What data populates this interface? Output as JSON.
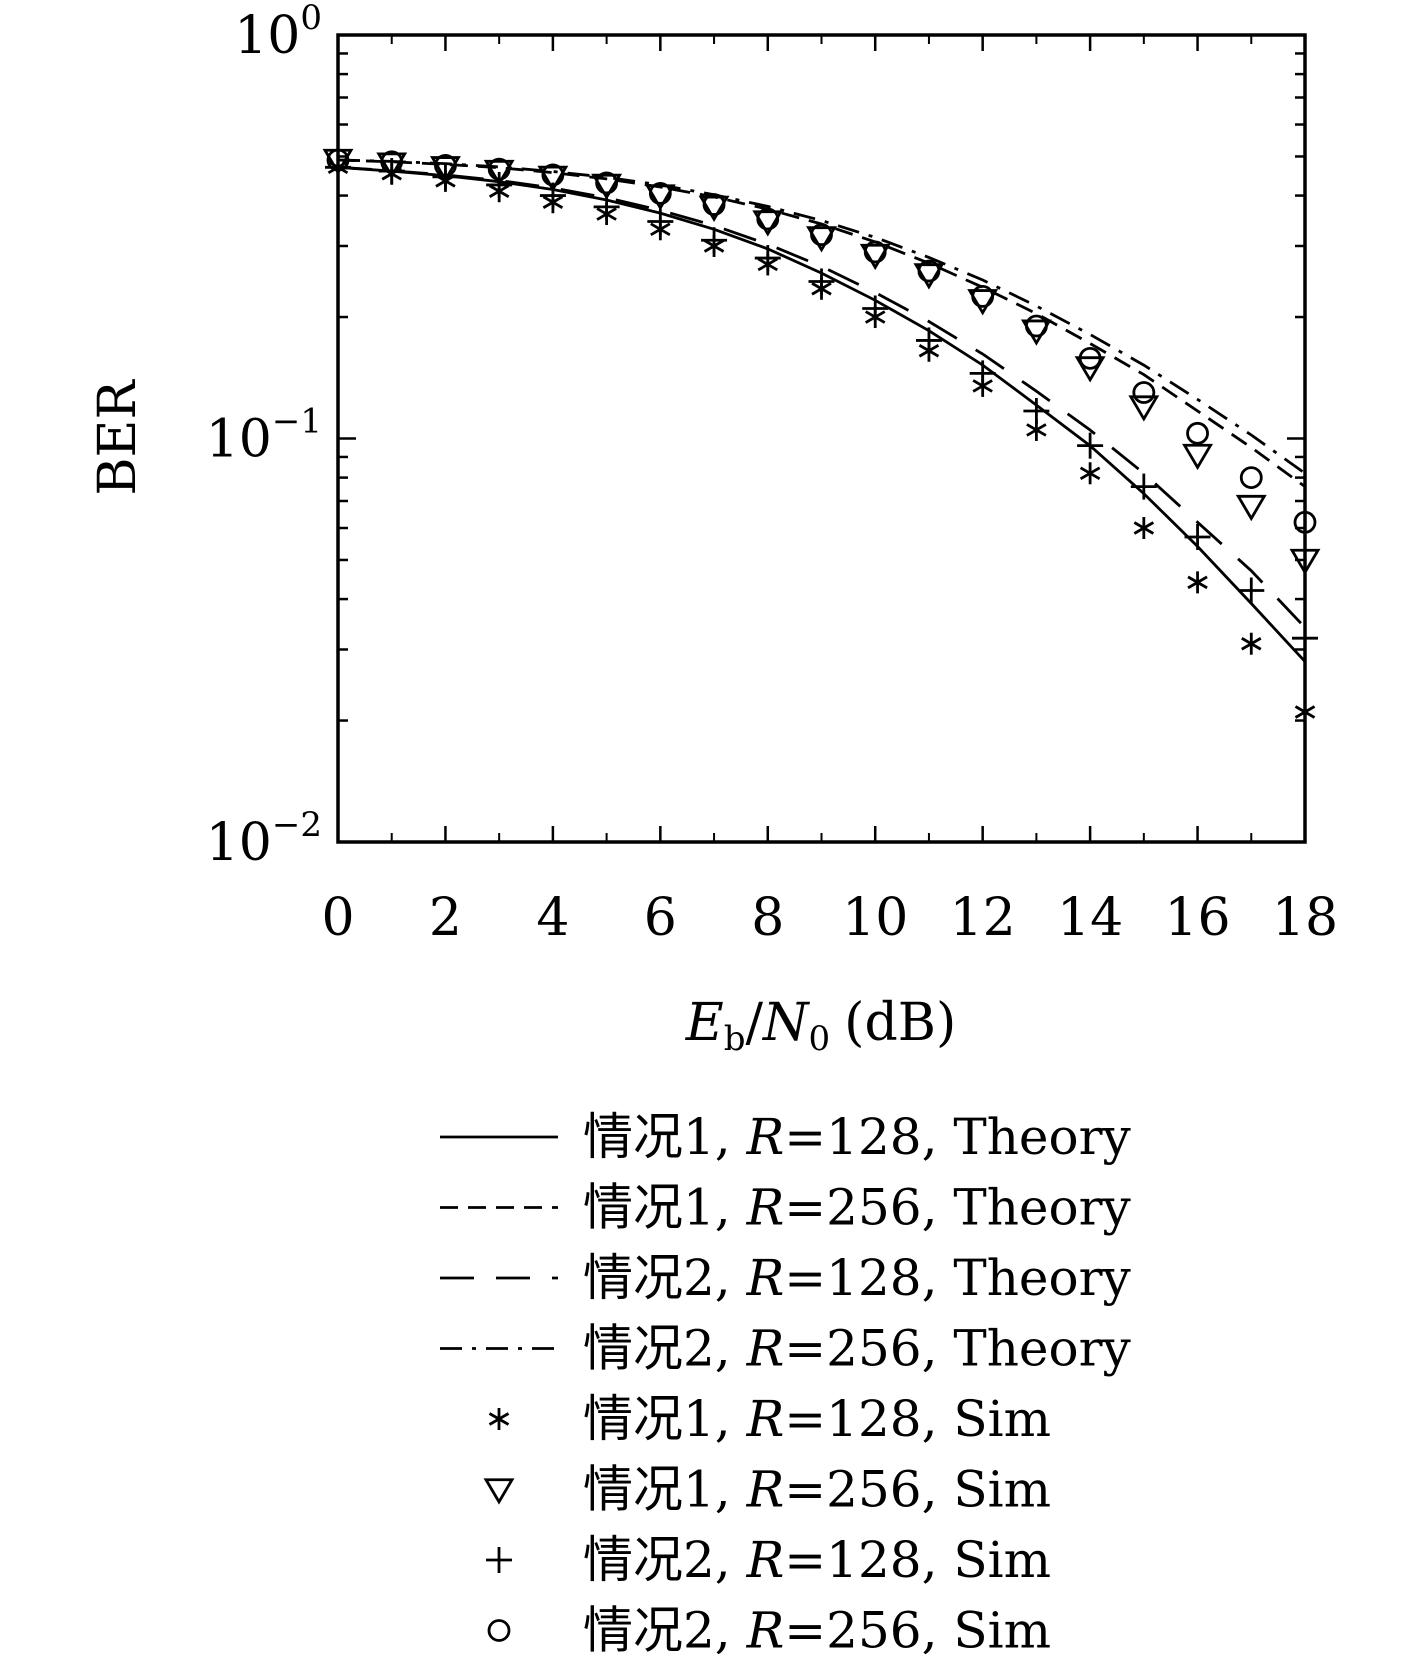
{
  "chart_data": {
    "type": "line",
    "title": "",
    "xlabel": {
      "E": "E",
      "b": "b",
      "slash": "/",
      "N": "N",
      "zero": "0",
      "unit": "(dB)"
    },
    "ylabel": "BER",
    "xlim": [
      0,
      18
    ],
    "ylim": [
      0.01,
      1
    ],
    "yscale": "log",
    "x_ticks": [
      "0",
      "2",
      "4",
      "6",
      "8",
      "10",
      "12",
      "14",
      "16",
      "18"
    ],
    "y_ticks": [
      {
        "base": "10",
        "exp": "0"
      },
      {
        "base": "10",
        "exp": "−1"
      },
      {
        "base": "10",
        "exp": "−2"
      }
    ],
    "grid": false,
    "legend_position": "bottom",
    "series": [
      {
        "name_parts": [
          "情况1, ",
          "R",
          "=128, Theory"
        ],
        "style": "solid",
        "marker": "none",
        "x": [
          0,
          1,
          2,
          3,
          4,
          5,
          6,
          7,
          8,
          9,
          10,
          11,
          12,
          13,
          14,
          15,
          16,
          17,
          18
        ],
        "y": [
          0.47,
          0.46,
          0.448,
          0.433,
          0.414,
          0.39,
          0.362,
          0.33,
          0.295,
          0.257,
          0.22,
          0.185,
          0.152,
          0.121,
          0.096,
          0.073,
          0.054,
          0.039,
          0.028
        ]
      },
      {
        "name_parts": [
          "情况1, ",
          "R",
          "=256, Theory"
        ],
        "style": "dashed",
        "marker": "none",
        "x": [
          0,
          1,
          2,
          3,
          4,
          5,
          6,
          7,
          8,
          9,
          10,
          11,
          12,
          13,
          14,
          15,
          16,
          17,
          18
        ],
        "y": [
          0.49,
          0.485,
          0.478,
          0.469,
          0.456,
          0.44,
          0.42,
          0.397,
          0.37,
          0.34,
          0.307,
          0.272,
          0.237,
          0.204,
          0.172,
          0.144,
          0.117,
          0.095,
          0.076
        ]
      },
      {
        "name_parts": [
          "情况2, ",
          "R",
          "=128, Theory"
        ],
        "style": "longdash",
        "marker": "none",
        "x": [
          0,
          1,
          2,
          3,
          4,
          5,
          6,
          7,
          8,
          9,
          10,
          11,
          12,
          13,
          14,
          15,
          16,
          17,
          18
        ],
        "y": [
          0.47,
          0.461,
          0.45,
          0.436,
          0.418,
          0.395,
          0.368,
          0.337,
          0.303,
          0.267,
          0.23,
          0.195,
          0.162,
          0.131,
          0.105,
          0.082,
          0.062,
          0.047,
          0.034
        ]
      },
      {
        "name_parts": [
          "情况2, ",
          "R",
          "=256, Theory"
        ],
        "style": "dashdot",
        "marker": "none",
        "x": [
          0,
          1,
          2,
          3,
          4,
          5,
          6,
          7,
          8,
          9,
          10,
          11,
          12,
          13,
          14,
          15,
          16,
          17,
          18
        ],
        "y": [
          0.49,
          0.486,
          0.48,
          0.471,
          0.459,
          0.444,
          0.425,
          0.402,
          0.376,
          0.347,
          0.315,
          0.281,
          0.247,
          0.213,
          0.181,
          0.152,
          0.125,
          0.102,
          0.082
        ]
      },
      {
        "name_parts": [
          "情况1, ",
          "R",
          "=128, Sim"
        ],
        "style": "none",
        "marker": "asterisk",
        "x": [
          0,
          1,
          2,
          3,
          4,
          5,
          6,
          7,
          8,
          9,
          10,
          11,
          12,
          13,
          14,
          15,
          16,
          17,
          18
        ],
        "y": [
          0.47,
          0.453,
          0.435,
          0.41,
          0.385,
          0.36,
          0.33,
          0.3,
          0.27,
          0.235,
          0.2,
          0.165,
          0.135,
          0.105,
          0.082,
          0.06,
          0.044,
          0.031,
          0.021
        ]
      },
      {
        "name_parts": [
          "情况1, ",
          "R",
          "=256, Sim"
        ],
        "style": "none",
        "marker": "triangle-down",
        "x": [
          0,
          1,
          2,
          3,
          4,
          5,
          6,
          7,
          8,
          9,
          10,
          11,
          12,
          13,
          14,
          15,
          16,
          17,
          18
        ],
        "y": [
          0.49,
          0.48,
          0.47,
          0.46,
          0.445,
          0.425,
          0.4,
          0.375,
          0.345,
          0.315,
          0.285,
          0.255,
          0.22,
          0.185,
          0.15,
          0.12,
          0.091,
          0.068,
          0.05
        ]
      },
      {
        "name_parts": [
          "情况2, ",
          "R",
          "=128, Sim"
        ],
        "style": "none",
        "marker": "plus",
        "x": [
          0,
          1,
          2,
          3,
          4,
          5,
          6,
          7,
          8,
          9,
          10,
          11,
          12,
          13,
          14,
          15,
          16,
          17,
          18
        ],
        "y": [
          0.47,
          0.46,
          0.445,
          0.425,
          0.4,
          0.375,
          0.345,
          0.31,
          0.28,
          0.245,
          0.21,
          0.175,
          0.145,
          0.117,
          0.096,
          0.076,
          0.057,
          0.042,
          0.032
        ]
      },
      {
        "name_parts": [
          "情况2, ",
          "R",
          "=256, Sim"
        ],
        "style": "none",
        "marker": "circle",
        "x": [
          0,
          1,
          2,
          3,
          4,
          5,
          6,
          7,
          8,
          9,
          10,
          11,
          12,
          13,
          14,
          15,
          16,
          17,
          18
        ],
        "y": [
          0.49,
          0.485,
          0.475,
          0.465,
          0.45,
          0.43,
          0.405,
          0.38,
          0.35,
          0.32,
          0.29,
          0.26,
          0.225,
          0.19,
          0.158,
          0.13,
          0.103,
          0.08,
          0.062
        ]
      }
    ]
  }
}
